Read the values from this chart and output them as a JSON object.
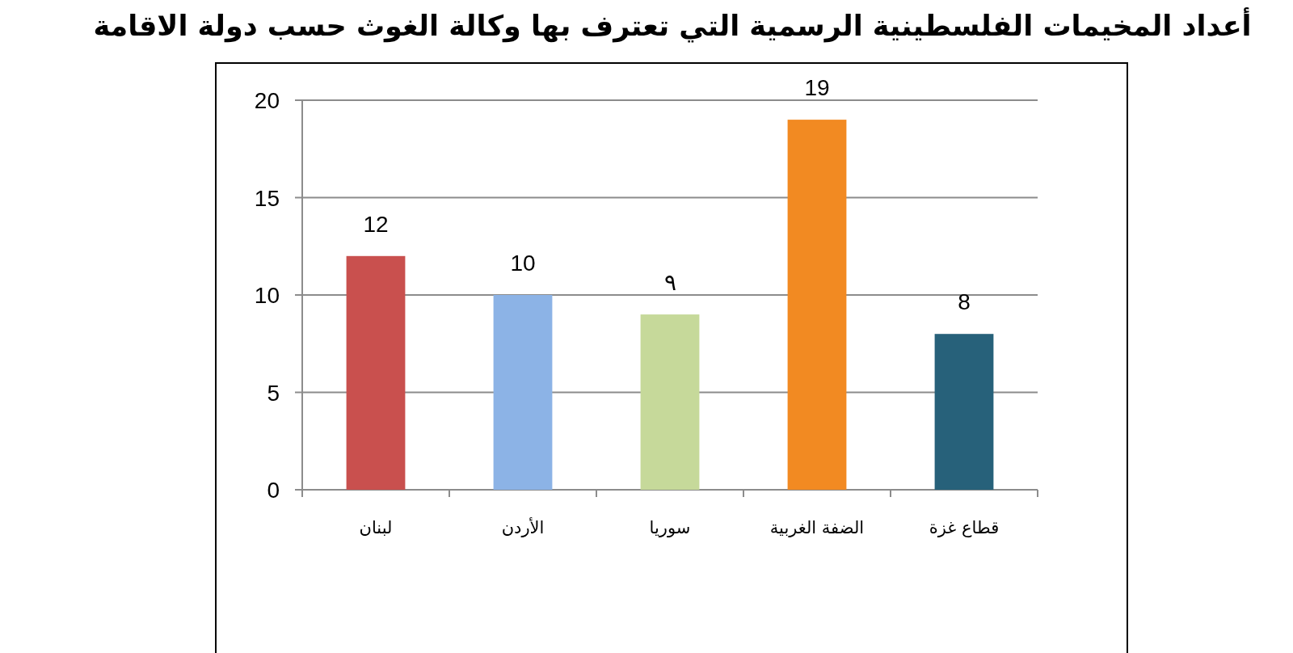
{
  "chart_data": {
    "type": "bar",
    "title": "أعداد المخيمات الفلسطينية الرسمية التي تعترف بها وكالة الغوث حسب دولة الاقامة",
    "categories": [
      "لبنان",
      "الأردن",
      "سوريا",
      "الضفة الغربية",
      "قطاع غزة"
    ],
    "values": [
      12,
      10,
      9,
      19,
      8
    ],
    "colors": [
      "#c9504e",
      "#8cb3e6",
      "#c6d99a",
      "#f28a22",
      "#27617a"
    ],
    "value_labels": [
      "12",
      "10",
      "٩",
      "19",
      "8"
    ],
    "ylim": [
      0,
      20
    ],
    "yticks": [
      0,
      5,
      10,
      15,
      20
    ],
    "grid": "y"
  }
}
